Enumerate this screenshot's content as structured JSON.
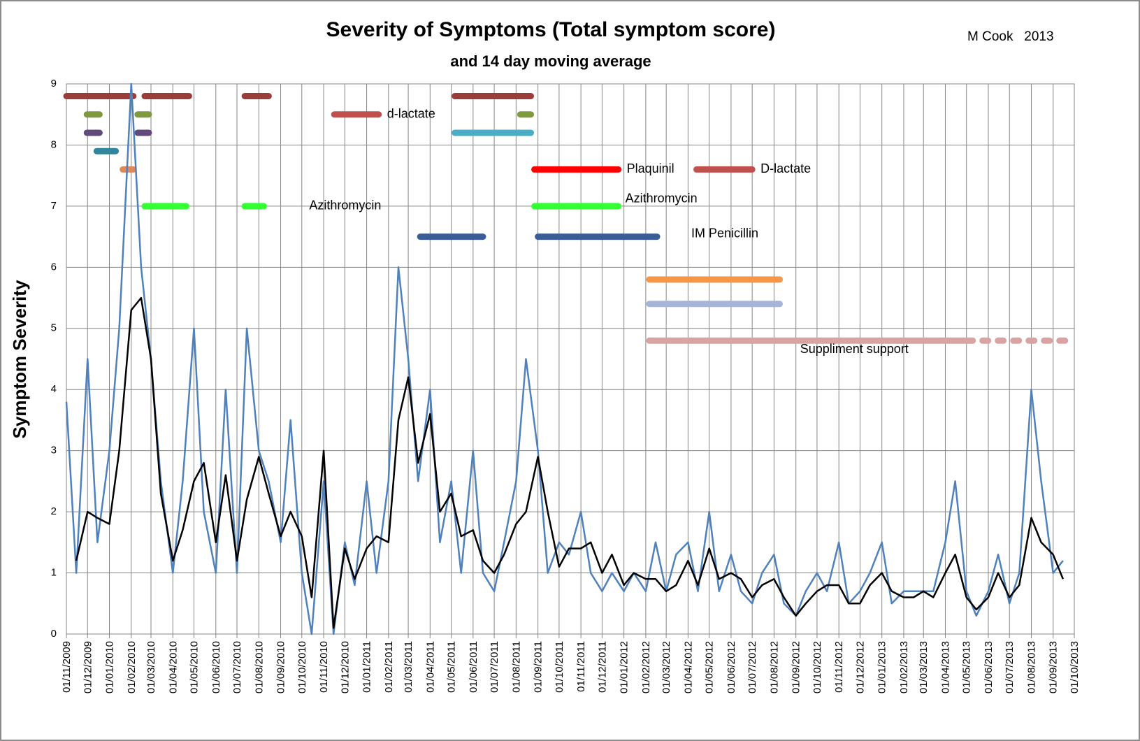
{
  "chart_data": {
    "type": "line",
    "title": "Severity of Symptoms (Total symptom score)",
    "subtitle": "and 14 day moving average",
    "author": "M Cook   2013",
    "ylabel": "Symptom Severity",
    "grid": true,
    "xlim": [
      "01/11/2009",
      "01/10/2013"
    ],
    "xticks": [
      "01/11/2009",
      "01/12/2009",
      "01/01/2010",
      "01/02/2010",
      "01/03/2010",
      "01/04/2010",
      "01/05/2010",
      "01/06/2010",
      "01/07/2010",
      "01/08/2010",
      "01/09/2010",
      "01/10/2010",
      "01/11/2010",
      "01/12/2010",
      "01/01/2011",
      "01/02/2011",
      "01/03/2011",
      "01/04/2011",
      "01/05/2011",
      "01/06/2011",
      "01/07/2011",
      "01/08/2011",
      "01/09/2011",
      "01/10/2011",
      "01/11/2011",
      "01/12/2011",
      "01/01/2012",
      "01/02/2012",
      "01/03/2012",
      "01/04/2012",
      "01/05/2012",
      "01/06/2012",
      "01/07/2012",
      "01/08/2012",
      "01/09/2012",
      "01/10/2012",
      "01/11/2012",
      "01/12/2012",
      "01/01/2013",
      "01/02/2013",
      "01/03/2013",
      "01/04/2013",
      "01/05/2013",
      "01/06/2013",
      "01/07/2013",
      "01/08/2013",
      "01/09/2013",
      "01/10/2013"
    ],
    "ylim": [
      0,
      9
    ],
    "yticks": [
      0,
      1,
      2,
      3,
      4,
      5,
      6,
      7,
      8,
      9
    ],
    "x": [
      "01/11/2009",
      "15/11/2009",
      "01/12/2009",
      "15/12/2009",
      "01/01/2010",
      "15/01/2010",
      "01/02/2010",
      "15/02/2010",
      "01/03/2010",
      "15/03/2010",
      "01/04/2010",
      "15/04/2010",
      "01/05/2010",
      "15/05/2010",
      "01/06/2010",
      "15/06/2010",
      "01/07/2010",
      "15/07/2010",
      "01/08/2010",
      "15/08/2010",
      "01/09/2010",
      "15/09/2010",
      "01/10/2010",
      "15/10/2010",
      "01/11/2010",
      "15/11/2010",
      "01/12/2010",
      "15/12/2010",
      "01/01/2011",
      "15/01/2011",
      "01/02/2011",
      "15/02/2011",
      "01/03/2011",
      "15/03/2011",
      "01/04/2011",
      "15/04/2011",
      "01/05/2011",
      "15/05/2011",
      "01/06/2011",
      "15/06/2011",
      "01/07/2011",
      "15/07/2011",
      "01/08/2011",
      "15/08/2011",
      "01/09/2011",
      "15/09/2011",
      "01/10/2011",
      "15/10/2011",
      "01/11/2011",
      "15/11/2011",
      "01/12/2011",
      "15/12/2011",
      "01/01/2012",
      "15/01/2012",
      "01/02/2012",
      "15/02/2012",
      "01/03/2012",
      "15/03/2012",
      "01/04/2012",
      "15/04/2012",
      "01/05/2012",
      "15/05/2012",
      "01/06/2012",
      "15/06/2012",
      "01/07/2012",
      "15/07/2012",
      "01/08/2012",
      "15/08/2012",
      "01/09/2012",
      "15/09/2012",
      "01/10/2012",
      "15/10/2012",
      "01/11/2012",
      "15/11/2012",
      "01/12/2012",
      "15/12/2012",
      "01/01/2013",
      "15/01/2013",
      "01/02/2013",
      "15/02/2013",
      "01/03/2013",
      "15/03/2013",
      "01/04/2013",
      "15/04/2013",
      "01/05/2013",
      "15/05/2013",
      "01/06/2013",
      "15/06/2013",
      "01/07/2013",
      "15/07/2013",
      "01/08/2013",
      "15/08/2013",
      "01/09/2013",
      "15/09/2013"
    ],
    "series": [
      {
        "color": "#4f81bd",
        "values": [
          3.8,
          1.0,
          4.5,
          1.5,
          3.0,
          5.0,
          9.0,
          6.0,
          4.5,
          2.5,
          1.0,
          2.5,
          5.0,
          2.0,
          1.0,
          4.0,
          1.0,
          5.0,
          3.0,
          2.5,
          1.5,
          3.5,
          1.0,
          0.0,
          2.5,
          0.0,
          1.5,
          0.8,
          2.5,
          1.0,
          2.5,
          6.0,
          4.5,
          2.5,
          4.0,
          1.5,
          2.5,
          1.0,
          3.0,
          1.0,
          0.7,
          1.5,
          2.5,
          4.5,
          3.0,
          1.0,
          1.5,
          1.3,
          2.0,
          1.0,
          0.7,
          1.0,
          0.7,
          1.0,
          0.7,
          1.5,
          0.7,
          1.3,
          1.5,
          0.7,
          2.0,
          0.7,
          1.3,
          0.7,
          0.5,
          1.0,
          1.3,
          0.5,
          0.3,
          0.7,
          1.0,
          0.7,
          1.5,
          0.5,
          0.7,
          1.0,
          1.5,
          0.5,
          0.7,
          0.7,
          0.7,
          0.7,
          1.5,
          2.5,
          0.7,
          0.3,
          0.7,
          1.3,
          0.5,
          1.0,
          4.0,
          2.5,
          1.0,
          1.2
        ]
      },
      {
        "color": "#000000",
        "values": [
          null,
          1.2,
          2.0,
          1.9,
          1.8,
          3.0,
          5.3,
          5.5,
          4.5,
          2.3,
          1.2,
          1.7,
          2.5,
          2.8,
          1.5,
          2.6,
          1.2,
          2.2,
          2.9,
          2.3,
          1.6,
          2.0,
          1.6,
          0.6,
          3.0,
          0.1,
          1.4,
          0.9,
          1.4,
          1.6,
          1.5,
          3.5,
          4.2,
          2.8,
          3.6,
          2.0,
          2.3,
          1.6,
          1.7,
          1.2,
          1.0,
          1.3,
          1.8,
          2.0,
          2.9,
          2.0,
          1.1,
          1.4,
          1.4,
          1.5,
          1.0,
          1.3,
          0.8,
          1.0,
          0.9,
          0.9,
          0.7,
          0.8,
          1.2,
          0.8,
          1.4,
          0.9,
          1.0,
          0.9,
          0.6,
          0.8,
          0.9,
          0.6,
          0.3,
          0.5,
          0.7,
          0.8,
          0.8,
          0.5,
          0.5,
          0.8,
          1.0,
          0.7,
          0.6,
          0.6,
          0.7,
          0.6,
          1.0,
          1.3,
          0.6,
          0.4,
          0.6,
          1.0,
          0.6,
          0.8,
          1.9,
          1.5,
          1.3,
          0.9
        ]
      }
    ],
    "annotations": [
      {
        "y": 8.8,
        "start": "01/11/2009",
        "end": "04/02/2010",
        "color": "#9c3c3a"
      },
      {
        "y": 8.8,
        "start": "20/02/2010",
        "end": "24/04/2010",
        "color": "#9c3c3a"
      },
      {
        "y": 8.8,
        "start": "12/07/2010",
        "end": "15/08/2010",
        "color": "#9c3c3a"
      },
      {
        "y": 8.8,
        "start": "06/05/2011",
        "end": "22/08/2011",
        "color": "#9c3c3a"
      },
      {
        "y": 8.5,
        "start": "30/11/2009",
        "end": "18/12/2009",
        "color": "#7f9a3e"
      },
      {
        "y": 8.5,
        "start": "10/02/2010",
        "end": "26/02/2010",
        "color": "#7f9a3e"
      },
      {
        "y": 8.5,
        "start": "07/08/2011",
        "end": "22/08/2011",
        "color": "#7f9a3e"
      },
      {
        "y": 8.2,
        "start": "30/11/2009",
        "end": "18/12/2009",
        "color": "#604a7b"
      },
      {
        "y": 8.2,
        "start": "10/02/2010",
        "end": "26/02/2010",
        "color": "#604a7b"
      },
      {
        "y": 7.9,
        "start": "14/12/2009",
        "end": "10/01/2010",
        "color": "#31859c"
      },
      {
        "y": 7.6,
        "start": "20/01/2010",
        "end": "04/02/2010",
        "color": "#e0885a"
      },
      {
        "y": 8.5,
        "start": "16/11/2010",
        "end": "18/01/2011",
        "color": "#c0504d",
        "label": "d-lactate"
      },
      {
        "y": 8.2,
        "start": "06/05/2011",
        "end": "22/08/2011",
        "color": "#4bacc6"
      },
      {
        "y": 7.0,
        "start": "20/02/2010",
        "end": "20/04/2010",
        "color": "#33ff33"
      },
      {
        "y": 7.0,
        "start": "12/07/2010",
        "end": "08/08/2010",
        "color": "#33ff33",
        "label": "Azithromycin"
      },
      {
        "y": 7.0,
        "start": "27/08/2011",
        "end": "24/12/2011",
        "color": "#33ff33",
        "label": "Azithromycin"
      },
      {
        "y": 7.6,
        "start": "27/08/2011",
        "end": "24/12/2011",
        "color": "#ff0000",
        "label": "Plaquinil"
      },
      {
        "y": 7.6,
        "start": "13/04/2012",
        "end": "01/07/2012",
        "color": "#c0504d",
        "label": "D-lactate"
      },
      {
        "y": 6.5,
        "start": "18/03/2011",
        "end": "15/06/2011",
        "color": "#3a5d95"
      },
      {
        "y": 6.5,
        "start": "01/09/2011",
        "end": "17/02/2012",
        "color": "#3a5d95",
        "label": "IM Penicillin"
      },
      {
        "y": 5.8,
        "start": "06/02/2012",
        "end": "09/08/2012",
        "color": "#f79646"
      },
      {
        "y": 5.4,
        "start": "06/02/2012",
        "end": "09/08/2012",
        "color": "#a6b5d7"
      },
      {
        "y": 4.8,
        "start": "06/02/2012",
        "end": "02/05/2013",
        "color": "#d9a3a3",
        "label": "Suppliment support"
      },
      {
        "y": 4.8,
        "start": "02/05/2013",
        "end": "18/09/2013",
        "color": "#d9a3a3",
        "style": "dotted"
      }
    ]
  }
}
